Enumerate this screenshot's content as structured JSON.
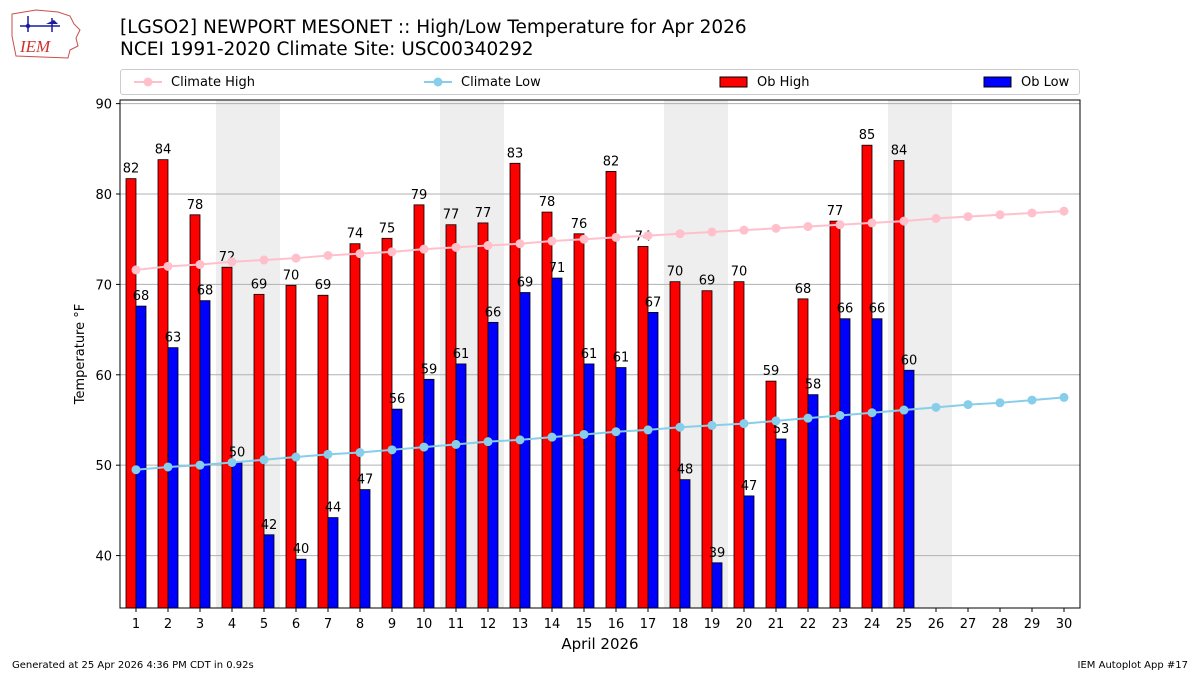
{
  "header": {
    "line1": "[LGSO2] NEWPORT MESONET :: High/Low Temperature for Apr 2026",
    "line2": "NCEI 1991-2020 Climate Site: USC00340292",
    "logo_text": "IEM"
  },
  "legend": {
    "climate_high": "Climate High",
    "climate_low": "Climate Low",
    "ob_high": "Ob High",
    "ob_low": "Ob Low"
  },
  "footer": {
    "left": "Generated at 25 Apr 2026 4:36 PM CDT in 0.92s",
    "right": "IEM Autoplot App #17"
  },
  "colors": {
    "ob_high": "#ff0000",
    "ob_low": "#0000ff",
    "climate_high": "#ffc0cb",
    "climate_low": "#87ceeb",
    "weekend_shade": "#eeeeee",
    "grid": "#b0b0b0"
  },
  "chart_data": {
    "type": "bar",
    "title": "[LGSO2] NEWPORT MESONET :: High/Low Temperature for Apr 2026",
    "subtitle": "NCEI 1991-2020 Climate Site: USC00340292",
    "xlabel": "April 2026",
    "ylabel": "Temperature °F",
    "ylim": [
      34.2,
      90.4
    ],
    "yticks": [
      40,
      50,
      60,
      70,
      80,
      90
    ],
    "grid": "y",
    "legend_position": "top",
    "days": [
      1,
      2,
      3,
      4,
      5,
      6,
      7,
      8,
      9,
      10,
      11,
      12,
      13,
      14,
      15,
      16,
      17,
      18,
      19,
      20,
      21,
      22,
      23,
      24,
      25,
      26,
      27,
      28,
      29,
      30
    ],
    "shaded_day_ranges": [
      [
        4,
        5
      ],
      [
        11,
        12
      ],
      [
        18,
        19
      ],
      [
        25,
        26
      ]
    ],
    "series": [
      {
        "name": "Ob High",
        "type": "bar",
        "values": [
          81.7,
          83.8,
          77.7,
          71.9,
          68.9,
          69.9,
          68.8,
          74.5,
          75.1,
          78.8,
          76.6,
          76.8,
          83.4,
          78.0,
          75.6,
          82.5,
          74.2,
          70.3,
          69.3,
          70.3,
          59.3,
          68.4,
          77.0,
          85.4,
          83.7
        ],
        "labels": [
          "82",
          "84",
          "78",
          "72",
          "69",
          "70",
          "69",
          "74",
          "75",
          "79",
          "77",
          "77",
          "83",
          "78",
          "76",
          "82",
          "74",
          "70",
          "69",
          "70",
          "59",
          "68",
          "77",
          "85",
          "84"
        ]
      },
      {
        "name": "Ob Low",
        "type": "bar",
        "values": [
          67.6,
          63.0,
          68.2,
          50.3,
          42.3,
          39.6,
          44.2,
          47.3,
          56.2,
          59.5,
          61.2,
          65.8,
          69.1,
          70.7,
          61.2,
          60.8,
          66.9,
          48.4,
          39.2,
          46.6,
          52.9,
          57.8,
          66.2,
          66.2,
          60.5
        ],
        "labels": [
          "68",
          "63",
          "68",
          "50",
          "42",
          "40",
          "44",
          "47",
          "56",
          "59",
          "61",
          "66",
          "69",
          "71",
          "61",
          "61",
          "67",
          "48",
          "39",
          "47",
          "53",
          "58",
          "66",
          "66",
          "60"
        ]
      },
      {
        "name": "Climate High",
        "type": "line",
        "values": [
          71.6,
          72.0,
          72.2,
          72.5,
          72.7,
          72.9,
          73.2,
          73.4,
          73.6,
          73.9,
          74.1,
          74.3,
          74.5,
          74.8,
          75.0,
          75.2,
          75.4,
          75.6,
          75.8,
          76.0,
          76.2,
          76.4,
          76.6,
          76.8,
          77.0,
          77.3,
          77.5,
          77.7,
          77.9,
          78.1
        ]
      },
      {
        "name": "Climate Low",
        "type": "line",
        "values": [
          49.5,
          49.8,
          50.0,
          50.3,
          50.6,
          50.9,
          51.2,
          51.4,
          51.7,
          52.0,
          52.3,
          52.6,
          52.8,
          53.1,
          53.4,
          53.7,
          53.9,
          54.2,
          54.4,
          54.6,
          54.9,
          55.2,
          55.5,
          55.8,
          56.1,
          56.4,
          56.7,
          56.9,
          57.2,
          57.5
        ]
      }
    ]
  }
}
